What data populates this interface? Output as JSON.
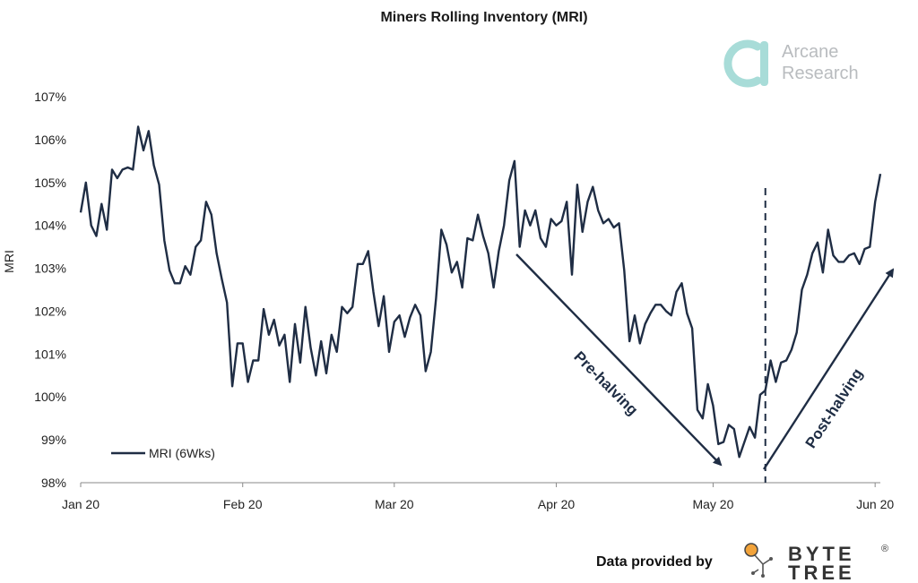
{
  "colors": {
    "line": "#1f2d44",
    "brand_teal": "#a8dcd8",
    "brand_text": "#b9bcbf",
    "bytetree_orange": "#f2a33a"
  },
  "branding": {
    "top_logo_icon": "arcane-logo-icon",
    "top_line1": "Arcane",
    "top_line2": "Research",
    "credit_text": "Data provided by",
    "bytetree_icon": "bytetree-logo-icon",
    "bytetree_line1": "BYTE",
    "bytetree_line2": "TREE",
    "bytetree_mark": "®"
  },
  "annotations": {
    "pre_halving": "Pre-halving",
    "post_halving": "Post-halving"
  },
  "chart_data": {
    "type": "line",
    "title": "Miners Rolling Inventory (MRI)",
    "xlabel": "",
    "ylabel": "MRI",
    "ylim": [
      98,
      107
    ],
    "y_ticks": [
      "98%",
      "99%",
      "100%",
      "101%",
      "102%",
      "103%",
      "104%",
      "105%",
      "106%",
      "107%"
    ],
    "x_tick_labels": [
      "Jan 20",
      "Feb 20",
      "Mar 20",
      "Apr 20",
      "May 20",
      "Jun 20"
    ],
    "x_tick_days": [
      0,
      31,
      60,
      91,
      121,
      152
    ],
    "xlim": [
      0,
      153
    ],
    "grid": false,
    "legend": "bottom-left",
    "halving_day": 131,
    "series": [
      {
        "name": "MRI (6Wks)",
        "days": [
          0,
          1,
          2,
          3,
          4,
          5,
          6,
          7,
          8,
          9,
          10,
          11,
          12,
          13,
          14,
          15,
          16,
          17,
          18,
          19,
          20,
          21,
          22,
          23,
          24,
          25,
          26,
          27,
          28,
          29,
          30,
          31,
          32,
          33,
          34,
          35,
          36,
          37,
          38,
          39,
          40,
          41,
          42,
          43,
          44,
          45,
          46,
          47,
          48,
          49,
          50,
          51,
          52,
          53,
          54,
          55,
          56,
          57,
          58,
          59,
          60,
          61,
          62,
          63,
          64,
          65,
          66,
          67,
          68,
          69,
          70,
          71,
          72,
          73,
          74,
          75,
          76,
          77,
          78,
          79,
          80,
          81,
          82,
          83,
          84,
          85,
          86,
          87,
          88,
          89,
          90,
          91,
          92,
          93,
          94,
          95,
          96,
          97,
          98,
          99,
          100,
          101,
          102,
          103,
          104,
          105,
          106,
          107,
          108,
          109,
          110,
          111,
          112,
          113,
          114,
          115,
          116,
          117,
          118,
          119,
          120,
          121,
          122,
          123,
          124,
          125,
          126,
          127,
          128,
          129,
          130,
          131,
          132,
          133,
          134,
          135,
          136,
          137,
          138,
          139,
          140,
          141,
          142,
          143,
          144,
          145,
          146,
          147,
          148,
          149,
          150,
          151,
          152,
          153
        ],
        "values": [
          104.3,
          105.0,
          104.0,
          103.75,
          104.5,
          103.9,
          105.3,
          105.1,
          105.3,
          105.35,
          105.3,
          106.3,
          105.75,
          106.2,
          105.4,
          104.95,
          103.65,
          102.95,
          102.65,
          102.65,
          103.05,
          102.85,
          103.5,
          103.65,
          104.55,
          104.25,
          103.35,
          102.75,
          102.2,
          100.25,
          101.25,
          101.25,
          100.35,
          100.85,
          100.85,
          102.05,
          101.45,
          101.8,
          101.2,
          101.45,
          100.35,
          101.7,
          100.8,
          102.1,
          101.15,
          100.5,
          101.3,
          100.55,
          101.45,
          101.05,
          102.1,
          101.95,
          102.1,
          103.1,
          103.1,
          103.4,
          102.45,
          101.65,
          102.35,
          101.05,
          101.75,
          101.9,
          101.4,
          101.85,
          102.15,
          101.9,
          100.6,
          101.05,
          102.3,
          103.9,
          103.55,
          102.9,
          103.15,
          102.55,
          103.7,
          103.65,
          104.25,
          103.75,
          103.35,
          102.55,
          103.4,
          104.0,
          105.05,
          105.5,
          103.5,
          104.35,
          104.0,
          104.35,
          103.7,
          103.5,
          104.15,
          104.0,
          104.1,
          104.55,
          102.85,
          104.95,
          103.85,
          104.55,
          104.9,
          104.35,
          104.05,
          104.15,
          103.95,
          104.05,
          102.95,
          101.3,
          101.9,
          101.25,
          101.7,
          101.95,
          102.15,
          102.15,
          102.0,
          101.9,
          102.45,
          102.65,
          101.95,
          101.6,
          99.7,
          99.5,
          100.3,
          99.8,
          98.9,
          98.95,
          99.35,
          99.25,
          98.6,
          98.95,
          99.3,
          99.05,
          100.05,
          100.15,
          100.85,
          100.35,
          100.8,
          100.85,
          101.1,
          101.5,
          102.5,
          102.85,
          103.35,
          103.6,
          102.9,
          103.9,
          103.3,
          103.15,
          103.15,
          103.3,
          103.35,
          103.1,
          103.45,
          103.5,
          104.55,
          105.2
        ]
      }
    ]
  }
}
